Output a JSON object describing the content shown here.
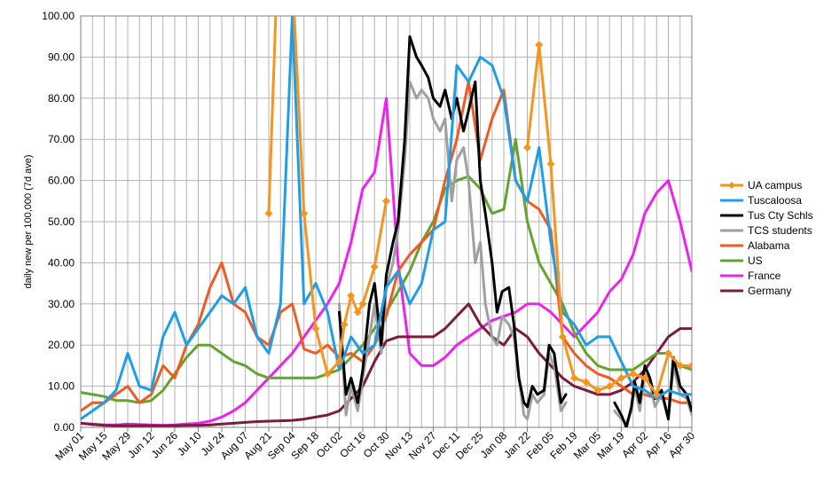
{
  "chart_data": {
    "type": "line",
    "title": "",
    "xlabel": "",
    "ylabel": "daily new per 100,000 (7d ave)",
    "ylim": [
      0,
      100
    ],
    "y_ticks": [
      "0.00",
      "10.00",
      "20.00",
      "30.00",
      "40.00",
      "50.00",
      "60.00",
      "70.00",
      "80.00",
      "90.00",
      "100.00"
    ],
    "x_ticks": [
      "May 01",
      "May 15",
      "May 29",
      "Jun 12",
      "Jun 26",
      "Jul 10",
      "Jul 24",
      "Aug 07",
      "Aug 21",
      "Sep 04",
      "Sep 18",
      "Oct 02",
      "Oct 16",
      "Oct 30",
      "Nov 13",
      "Nov 27",
      "Dec 11",
      "Dec 25",
      "Jan 08",
      "Jan 22",
      "Feb 05",
      "Feb 19",
      "Mar 05",
      "Mar 19",
      "Apr 02",
      "Apr 16",
      "Apr 30"
    ],
    "x_unit": "days since May 01",
    "grid": true,
    "legend_position": "right",
    "series": [
      {
        "name": "UA campus",
        "color": "#f7941d",
        "marker": "diamond",
        "x": [
          112,
          117,
          126,
          133,
          140,
          147,
          154,
          157,
          161,
          165,
          168,
          175,
          182,
          189,
          196,
          203,
          210,
          217,
          266,
          273,
          280,
          287,
          294,
          301,
          308,
          315,
          322,
          329,
          336,
          343,
          350,
          357,
          364
        ],
        "y": [
          52,
          110,
          110,
          52,
          24,
          13,
          16,
          25,
          32,
          28,
          30,
          39,
          55,
          null,
          null,
          null,
          null,
          null,
          68,
          93,
          64,
          22,
          12,
          11,
          9,
          10,
          12,
          13,
          12,
          8,
          18,
          15,
          15
        ]
      },
      {
        "name": "Tuscaloosa",
        "color": "#1e9ee8",
        "marker": "none",
        "x": [
          0,
          7,
          14,
          21,
          28,
          35,
          42,
          49,
          56,
          63,
          70,
          77,
          84,
          91,
          98,
          105,
          112,
          119,
          126,
          133,
          140,
          147,
          154,
          161,
          168,
          175,
          182,
          189,
          196,
          203,
          210,
          217,
          224,
          231,
          238,
          245,
          252,
          259,
          266,
          273,
          280,
          287,
          294,
          301,
          308,
          315,
          322,
          329,
          336,
          343,
          350,
          357,
          364
        ],
        "y": [
          2,
          4,
          6,
          9,
          18,
          10,
          9,
          22,
          28,
          20,
          24,
          28,
          32,
          30,
          34,
          22,
          18,
          30,
          100,
          30,
          35,
          28,
          14,
          22,
          18,
          20,
          34,
          38,
          30,
          35,
          48,
          50,
          88,
          84,
          90,
          88,
          80,
          60,
          55,
          68,
          45,
          28,
          25,
          20,
          22,
          22,
          16,
          10,
          9,
          7,
          9,
          8,
          8
        ]
      },
      {
        "name": "Tus Cty Schls",
        "color": "#000000",
        "marker": "none",
        "x": [
          154,
          158,
          161,
          165,
          168,
          172,
          175,
          179,
          182,
          186,
          189,
          193,
          196,
          200,
          203,
          207,
          210,
          214,
          217,
          221,
          224,
          228,
          231,
          235,
          238,
          241,
          245,
          248,
          251,
          255,
          258,
          261,
          264,
          266,
          269,
          272,
          276,
          279,
          282,
          286,
          289,
          292,
          296,
          299,
          302,
          305,
          309,
          312,
          315,
          318,
          322,
          325,
          328,
          330,
          333,
          336,
          339,
          342,
          346,
          350,
          353,
          357,
          361,
          364
        ],
        "y": [
          28,
          8,
          12,
          6,
          14,
          30,
          35,
          20,
          37,
          45,
          50,
          70,
          95,
          90,
          88,
          85,
          80,
          78,
          82,
          75,
          80,
          72,
          77,
          84,
          60,
          52,
          40,
          28,
          33,
          34,
          25,
          12,
          6,
          5,
          10,
          8,
          9,
          20,
          18,
          6,
          8,
          null,
          null,
          null,
          null,
          null,
          null,
          null,
          null,
          6,
          3,
          0,
          5,
          11,
          6,
          15,
          12,
          7,
          9,
          2,
          17,
          10,
          8,
          4
        ]
      },
      {
        "name": "TCS students",
        "color": "#a0a0a0",
        "marker": "none",
        "x": [
          154,
          158,
          161,
          165,
          168,
          172,
          175,
          179,
          182,
          186,
          189,
          193,
          196,
          200,
          203,
          207,
          210,
          214,
          217,
          221,
          224,
          228,
          231,
          235,
          238,
          241,
          245,
          248,
          251,
          255,
          258,
          261,
          264,
          266,
          269,
          272,
          276,
          279,
          282,
          286,
          289,
          292,
          296,
          299,
          302,
          305,
          309,
          312,
          315,
          318,
          322,
          325,
          328,
          330,
          333,
          336,
          339,
          342,
          346,
          350,
          353,
          357,
          361,
          364
        ],
        "y": [
          30,
          3,
          10,
          4,
          12,
          22,
          30,
          18,
          34,
          40,
          48,
          65,
          84,
          80,
          82,
          80,
          75,
          72,
          75,
          55,
          65,
          68,
          60,
          40,
          45,
          30,
          22,
          20,
          27,
          25,
          22,
          12,
          3,
          2,
          8,
          6,
          8,
          18,
          15,
          4,
          6,
          null,
          null,
          null,
          null,
          null,
          null,
          null,
          null,
          4,
          2,
          1,
          4,
          10,
          4,
          13,
          11,
          5,
          8,
          2,
          15,
          8,
          7,
          3
        ]
      },
      {
        "name": "Alabama",
        "color": "#f15a22",
        "marker": "none",
        "x": [
          0,
          7,
          14,
          21,
          28,
          35,
          42,
          49,
          56,
          63,
          70,
          77,
          84,
          91,
          98,
          105,
          112,
          119,
          126,
          133,
          140,
          147,
          154,
          161,
          168,
          175,
          182,
          189,
          196,
          203,
          210,
          217,
          224,
          231,
          238,
          245,
          252,
          259,
          266,
          273,
          280,
          287,
          294,
          301,
          308,
          315,
          322,
          329,
          336,
          343,
          350,
          357,
          364
        ],
        "y": [
          4,
          6,
          6,
          8,
          10,
          6,
          8,
          15,
          12,
          20,
          25,
          34,
          40,
          30,
          28,
          22,
          20,
          28,
          30,
          19,
          18,
          20,
          17,
          18,
          16,
          20,
          27,
          38,
          42,
          45,
          48,
          60,
          70,
          84,
          65,
          75,
          82,
          60,
          55,
          53,
          48,
          22,
          18,
          15,
          13,
          12,
          10,
          8,
          8,
          7,
          7,
          6,
          6
        ]
      },
      {
        "name": "US",
        "color": "#63a42f",
        "marker": "none",
        "x": [
          0,
          7,
          14,
          21,
          28,
          35,
          42,
          49,
          56,
          63,
          70,
          77,
          84,
          91,
          98,
          105,
          112,
          119,
          126,
          133,
          140,
          147,
          154,
          161,
          168,
          175,
          182,
          189,
          196,
          203,
          210,
          217,
          224,
          231,
          238,
          245,
          252,
          259,
          266,
          273,
          280,
          287,
          294,
          301,
          308,
          315,
          322,
          329,
          336,
          343,
          350,
          357,
          364
        ],
        "y": [
          8.5,
          8,
          7.5,
          6.5,
          6.5,
          6,
          6.5,
          9,
          13,
          17,
          20,
          20,
          18,
          16,
          15,
          13,
          12,
          12,
          12,
          12,
          12,
          13,
          14,
          17,
          20,
          24,
          28,
          33,
          38,
          45,
          50,
          58,
          60,
          61,
          58,
          52,
          53,
          70,
          50,
          40,
          35,
          30,
          23,
          18,
          15,
          14,
          14,
          14,
          16,
          18,
          18,
          15,
          14
        ]
      },
      {
        "name": "France",
        "color": "#ee22ee",
        "marker": "none",
        "x": [
          0,
          7,
          14,
          21,
          28,
          35,
          42,
          49,
          56,
          63,
          70,
          77,
          84,
          91,
          98,
          105,
          112,
          119,
          126,
          133,
          140,
          147,
          154,
          161,
          168,
          175,
          182,
          189,
          196,
          203,
          210,
          217,
          224,
          231,
          238,
          245,
          252,
          259,
          266,
          273,
          280,
          287,
          294,
          301,
          308,
          315,
          322,
          329,
          336,
          343,
          350,
          357,
          364
        ],
        "y": [
          1,
          0.8,
          0.6,
          0.6,
          0.8,
          0.7,
          0.6,
          0.5,
          0.6,
          0.8,
          1,
          1.5,
          2.5,
          4,
          6,
          9,
          12,
          15,
          18,
          22,
          26,
          30,
          35,
          45,
          58,
          62,
          80,
          40,
          18,
          15,
          15,
          17,
          20,
          22,
          24,
          26,
          27,
          28,
          30,
          30,
          28,
          25,
          22,
          25,
          28,
          33,
          36,
          42,
          52,
          57,
          60,
          50,
          38
        ]
      },
      {
        "name": "Germany",
        "color": "#7b1c3d",
        "marker": "none",
        "x": [
          0,
          7,
          14,
          21,
          28,
          35,
          42,
          49,
          56,
          63,
          70,
          77,
          84,
          91,
          98,
          105,
          112,
          119,
          126,
          133,
          140,
          147,
          154,
          161,
          168,
          175,
          182,
          189,
          196,
          203,
          210,
          217,
          224,
          231,
          238,
          245,
          252,
          259,
          266,
          273,
          280,
          287,
          294,
          301,
          308,
          315,
          322,
          329,
          336,
          343,
          350,
          357,
          364
        ],
        "y": [
          1,
          0.7,
          0.5,
          0.4,
          0.4,
          0.4,
          0.4,
          0.4,
          0.4,
          0.5,
          0.5,
          0.6,
          0.8,
          1,
          1.2,
          1.4,
          1.5,
          1.6,
          1.7,
          2,
          2.5,
          3,
          4,
          7,
          10,
          16,
          21,
          22,
          22,
          22,
          22,
          24,
          27,
          30,
          25,
          22,
          20,
          24,
          22,
          18,
          15,
          12,
          10,
          9,
          8,
          8,
          9,
          11,
          14,
          18,
          22,
          24,
          24
        ]
      }
    ]
  }
}
